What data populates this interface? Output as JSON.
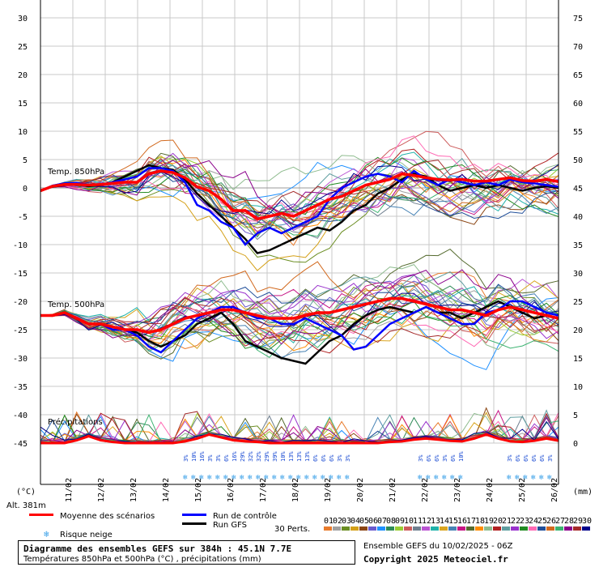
{
  "chart_data": {
    "type": "line",
    "title": "Diagramme des ensembles GEFS sur 384h : 45.1N 7.7E",
    "subtitle": "Températures 850hPa et 500hPa (°C) , précipitations (mm)",
    "left_axis": {
      "label": "(°C)",
      "ticks": [
        30,
        25,
        20,
        15,
        10,
        5,
        0,
        -5,
        -10,
        -15,
        -20,
        -25,
        -30,
        -35,
        -40,
        -45
      ],
      "range": [
        -45,
        30
      ]
    },
    "right_axis": {
      "label": "(mm)",
      "ticks": [
        75,
        70,
        65,
        60,
        55,
        50,
        45,
        40,
        35,
        30,
        25,
        20,
        15,
        10,
        5,
        0
      ],
      "range": [
        0,
        75
      ]
    },
    "x_categories": [
      "11/02",
      "12/02",
      "13/02",
      "14/02",
      "15/02",
      "16/02",
      "17/02",
      "18/02",
      "19/02",
      "20/02",
      "21/02",
      "22/02",
      "23/02",
      "24/02",
      "25/02",
      "26/02"
    ],
    "altitude": "Alt. 381m",
    "panel_labels": {
      "t850": "Temp. 850hPa",
      "t500": "Temp. 500hPa",
      "precip": "Précipitations"
    },
    "legend": {
      "mean": "Moyenne des scénarios",
      "control": "Run de contrôle",
      "gfs": "Run GFS",
      "snow": "Risque neige",
      "perts": "30 Perts."
    },
    "snow_labels_a": [
      "3%",
      "10%",
      "16%",
      "3%",
      "3%",
      "6%",
      "16%",
      "29%",
      "32%",
      "32%",
      "29%",
      "39%",
      "10%",
      "13%",
      "13%",
      "13%",
      "6%",
      "6%",
      "6%",
      "3%",
      "3%"
    ],
    "snow_labels_b": [
      "3%",
      "6%",
      "6%",
      "3%",
      "6%",
      "10%"
    ],
    "snow_labels_c": [
      "3%",
      "6%",
      "6%",
      "6%",
      "6%",
      "3%"
    ],
    "pert_numbers": [
      "01",
      "02",
      "03",
      "04",
      "05",
      "06",
      "07",
      "08",
      "09",
      "10",
      "11",
      "12",
      "13",
      "14",
      "15",
      "16",
      "17",
      "18",
      "19",
      "20",
      "21",
      "22",
      "23",
      "24",
      "25",
      "26",
      "27",
      "28",
      "29",
      "30"
    ],
    "pert_colors": [
      "#e87b2c",
      "#a0a0a0",
      "#6b8e23",
      "#d4a017",
      "#8b4513",
      "#6a5acd",
      "#1e90ff",
      "#2e8b57",
      "#9acd32",
      "#cd5c5c",
      "#708090",
      "#ba55d3",
      "#20b2aa",
      "#daa520",
      "#4682b4",
      "#c71585",
      "#556b2f",
      "#ff8c00",
      "#8fbc8f",
      "#b22222",
      "#5f9ea0",
      "#9932cc",
      "#228b22",
      "#ff69b4",
      "#1f4e99",
      "#d2691e",
      "#3cb371",
      "#8b008b",
      "#a52a2a",
      "#00008b"
    ],
    "mean_t850": [
      -0.5,
      0.3,
      0.6,
      0.6,
      0.5,
      0.6,
      0.8,
      1.0,
      1.0,
      2.5,
      3,
      2.7,
      1.8,
      0.2,
      -0.5,
      -2,
      -4,
      -4,
      -5.5,
      -5,
      -4.5,
      -5,
      -4,
      -3,
      -2,
      -1.5,
      -0.5,
      0.5,
      1,
      1.5,
      2.5,
      2.2,
      1.8,
      1.5,
      1.4,
      1.5,
      1.2,
      1.2,
      1.5,
      1.8,
      1.3,
      1.2,
      1.5,
      1.1
    ],
    "control_t850": [
      -0.5,
      0.4,
      0.8,
      0.9,
      0.5,
      0.6,
      1.0,
      1.5,
      2,
      3.5,
      3.5,
      3,
      1,
      -3,
      -4,
      -6,
      -7,
      -10,
      -8,
      -7,
      -8,
      -7,
      -6,
      -5,
      -2,
      0,
      1,
      2,
      2.5,
      2,
      1,
      3,
      1.5,
      0.5,
      1.5,
      1,
      0.5,
      1,
      0.5,
      1.5,
      1,
      0.8,
      0.5,
      0.2
    ],
    "gfs_t850": [
      -0.5,
      0.2,
      0.5,
      0.6,
      0.3,
      0.5,
      1,
      2,
      3,
      4,
      3.5,
      3.2,
      1.5,
      -1,
      -3,
      -5,
      -7,
      -9,
      -11.5,
      -11,
      -10,
      -9,
      -8,
      -7,
      -7.5,
      -6,
      -4,
      -3,
      -1,
      0,
      1.5,
      2.5,
      2,
      0.5,
      -0.5,
      0,
      0.5,
      0,
      0.5,
      0,
      -0.5,
      0,
      0.3,
      0
    ],
    "mean_t500": [
      -22.5,
      -22.5,
      -22,
      -23,
      -24,
      -24,
      -24.5,
      -25,
      -25,
      -25.5,
      -25,
      -24,
      -23,
      -22.5,
      -22,
      -21.5,
      -21.5,
      -22,
      -22.5,
      -23,
      -23,
      -23,
      -22.5,
      -22,
      -22,
      -21.5,
      -21,
      -20.5,
      -20,
      -19.5,
      -19.5,
      -20,
      -20.5,
      -21,
      -21.5,
      -21.5,
      -22,
      -22.5,
      -21.5,
      -21,
      -21.5,
      -22,
      -22.5,
      -23
    ],
    "control_t500": [
      -22.5,
      -22.5,
      -22,
      -23,
      -24,
      -24,
      -25,
      -25,
      -26,
      -28,
      -29,
      -27,
      -25,
      -23,
      -22,
      -21,
      -21,
      -22,
      -23,
      -23,
      -24,
      -24,
      -23,
      -24,
      -25,
      -26,
      -28.5,
      -28,
      -26,
      -24,
      -23,
      -22,
      -21,
      -22,
      -23,
      -24,
      -24,
      -22,
      -21.5,
      -20,
      -20,
      -21,
      -22,
      -22.5
    ],
    "gfs_t500": [
      -22.5,
      -22.5,
      -22,
      -23,
      -24,
      -24,
      -24.5,
      -25,
      -25.5,
      -27,
      -28,
      -27,
      -26,
      -24,
      -23,
      -22,
      -24,
      -27,
      -28,
      -29,
      -30,
      -30.5,
      -31,
      -29,
      -27,
      -26,
      -24,
      -22.5,
      -21.5,
      -21,
      -21.5,
      -22,
      -21,
      -22,
      -22,
      -23,
      -22,
      -21,
      -20,
      -21,
      -22,
      -23,
      -22.5,
      -23
    ],
    "mean_precip": [
      0,
      0,
      0,
      0.5,
      1.2,
      0.5,
      0.2,
      0,
      0,
      0,
      0,
      0,
      0.3,
      0.8,
      1.5,
      1,
      0.5,
      0.3,
      0.2,
      0,
      0,
      0,
      0,
      0,
      0,
      0,
      0,
      0,
      0,
      0.2,
      0.3,
      0.6,
      0.8,
      0.6,
      0.4,
      0.3,
      0.8,
      1.5,
      0.8,
      0.3,
      0.2,
      0.4,
      0.8,
      0.4
    ],
    "colors": {
      "mean": "#ff0000",
      "control": "#0000ff",
      "gfs": "#000000",
      "grid": "#c8c8c8",
      "snow": "#3aa0e8"
    }
  }
}
